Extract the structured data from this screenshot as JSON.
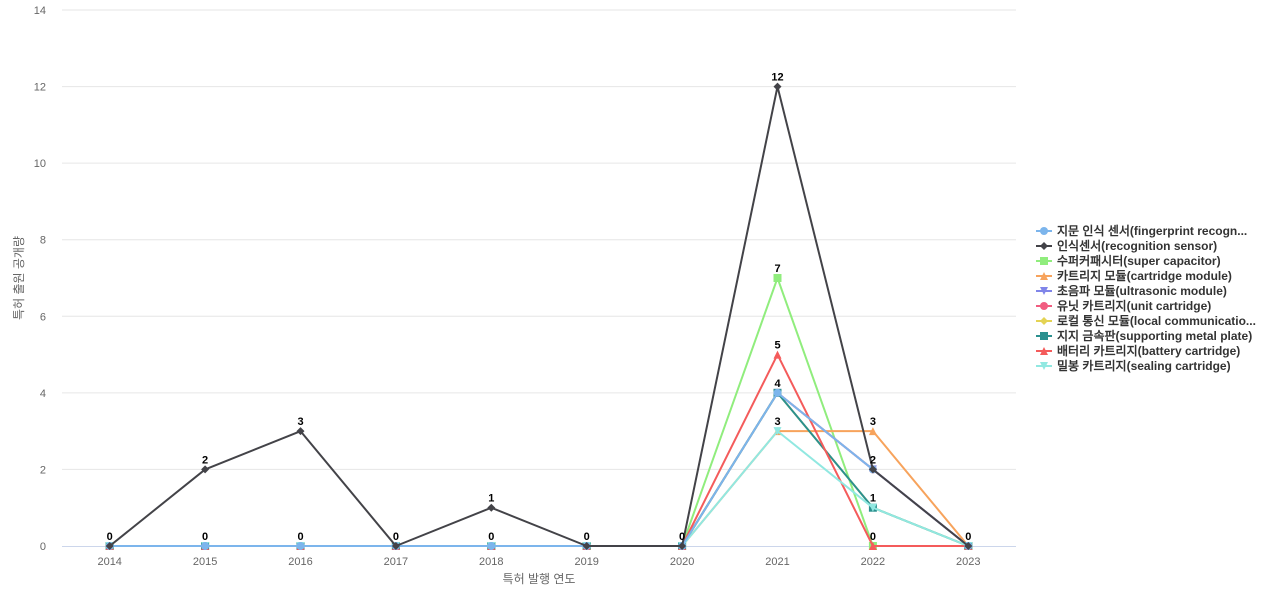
{
  "chart_data": {
    "type": "line",
    "xlabel": "특허 발행 연도",
    "ylabel": "특허 출원 공개량",
    "ylim": [
      0,
      14
    ],
    "yticks": [
      0,
      2,
      4,
      6,
      8,
      10,
      12,
      14
    ],
    "grid": true,
    "legend_position": "right",
    "x": [
      "2014",
      "2015",
      "2016",
      "2017",
      "2018",
      "2019",
      "2020",
      "2021",
      "2022",
      "2023"
    ],
    "series": [
      {
        "name": "지문 인식 센서(fingerprint recogn...",
        "color": "#7cb5ec",
        "marker": "circle",
        "values": [
          0,
          0,
          0,
          0,
          0,
          0,
          0,
          4,
          2,
          0
        ]
      },
      {
        "name": "인식센서(recognition sensor)",
        "color": "#434348",
        "marker": "diamond",
        "values": [
          0,
          2,
          3,
          0,
          1,
          0,
          0,
          12,
          2,
          0
        ]
      },
      {
        "name": "수퍼커패시터(super capacitor)",
        "color": "#90ed7d",
        "marker": "square",
        "values": [
          0,
          0,
          0,
          0,
          0,
          0,
          0,
          7,
          0,
          0
        ]
      },
      {
        "name": "카트리지 모듈(cartridge module)",
        "color": "#f7a35c",
        "marker": "triangle",
        "values": [
          0,
          0,
          0,
          0,
          0,
          0,
          0,
          3,
          3,
          0
        ]
      },
      {
        "name": "초음파 모듈(ultrasonic module)",
        "color": "#8085e9",
        "marker": "triangle-down",
        "values": [
          0,
          0,
          0,
          0,
          0,
          0,
          0,
          4,
          2,
          0
        ]
      },
      {
        "name": "유닛 카트리지(unit cartridge)",
        "color": "#f15c80",
        "marker": "circle",
        "values": [
          0,
          0,
          0,
          0,
          0,
          0,
          0,
          4,
          2,
          0
        ]
      },
      {
        "name": "로컬 통신 모듈(local communicatio...",
        "color": "#e4d354",
        "marker": "diamond",
        "values": [
          0,
          0,
          0,
          0,
          0,
          0,
          0,
          4,
          1,
          0
        ]
      },
      {
        "name": "지지 금속판(supporting metal plate)",
        "color": "#2b908f",
        "marker": "square",
        "values": [
          0,
          0,
          0,
          0,
          0,
          0,
          0,
          4,
          1,
          0
        ]
      },
      {
        "name": "배터리 카트리지(battery cartridge)",
        "color": "#f45b5b",
        "marker": "triangle",
        "values": [
          0,
          0,
          0,
          0,
          0,
          0,
          0,
          5,
          0,
          0
        ]
      },
      {
        "name": "밀봉 카트리지(sealing cartridge)",
        "color": "#91e8e1",
        "marker": "triangle-down",
        "values": [
          0,
          0,
          0,
          0,
          0,
          0,
          0,
          3,
          1,
          0
        ]
      }
    ],
    "data_labels": [
      {
        "x": "2014",
        "value": 0,
        "series": "인식센서(recognition sensor)"
      },
      {
        "x": "2015",
        "value": 2,
        "series": "인식센서(recognition sensor)"
      },
      {
        "x": "2015",
        "value": 0,
        "series": "수퍼커패시터(super capacitor)"
      },
      {
        "x": "2016",
        "value": 3,
        "series": "인식센서(recognition sensor)"
      },
      {
        "x": "2016",
        "value": 0,
        "series": "수퍼커패시터(super capacitor)"
      },
      {
        "x": "2017",
        "value": 0,
        "series": "인식센서(recognition sensor)"
      },
      {
        "x": "2018",
        "value": 1,
        "series": "인식센서(recognition sensor)"
      },
      {
        "x": "2018",
        "value": 0,
        "series": "수퍼커패시터(super capacitor)"
      },
      {
        "x": "2019",
        "value": 0,
        "series": "인식센서(recognition sensor)"
      },
      {
        "x": "2020",
        "value": 0,
        "series": "인식센서(recognition sensor)"
      },
      {
        "x": "2021",
        "value": 12,
        "series": "인식센서(recognition sensor)"
      },
      {
        "x": "2021",
        "value": 7,
        "series": "수퍼커패시터(super capacitor)"
      },
      {
        "x": "2021",
        "value": 5,
        "series": "배터리 카트리지(battery cartridge)"
      },
      {
        "x": "2021",
        "value": 4,
        "series": "지지 금속판(supporting metal plate)"
      },
      {
        "x": "2021",
        "value": 3,
        "series": "밀봉 카트리지(sealing cartridge)"
      },
      {
        "x": "2022",
        "value": 3,
        "series": "카트리지 모듈(cartridge module)"
      },
      {
        "x": "2022",
        "value": 2,
        "series": "인식센서(recognition sensor)"
      },
      {
        "x": "2022",
        "value": 1,
        "series": "밀봉 카트리지(sealing cartridge)"
      },
      {
        "x": "2022",
        "value": 0,
        "series": "배터리 카트리지(battery cartridge)"
      },
      {
        "x": "2023",
        "value": 0,
        "series": "인식센서(recognition sensor)"
      }
    ]
  }
}
